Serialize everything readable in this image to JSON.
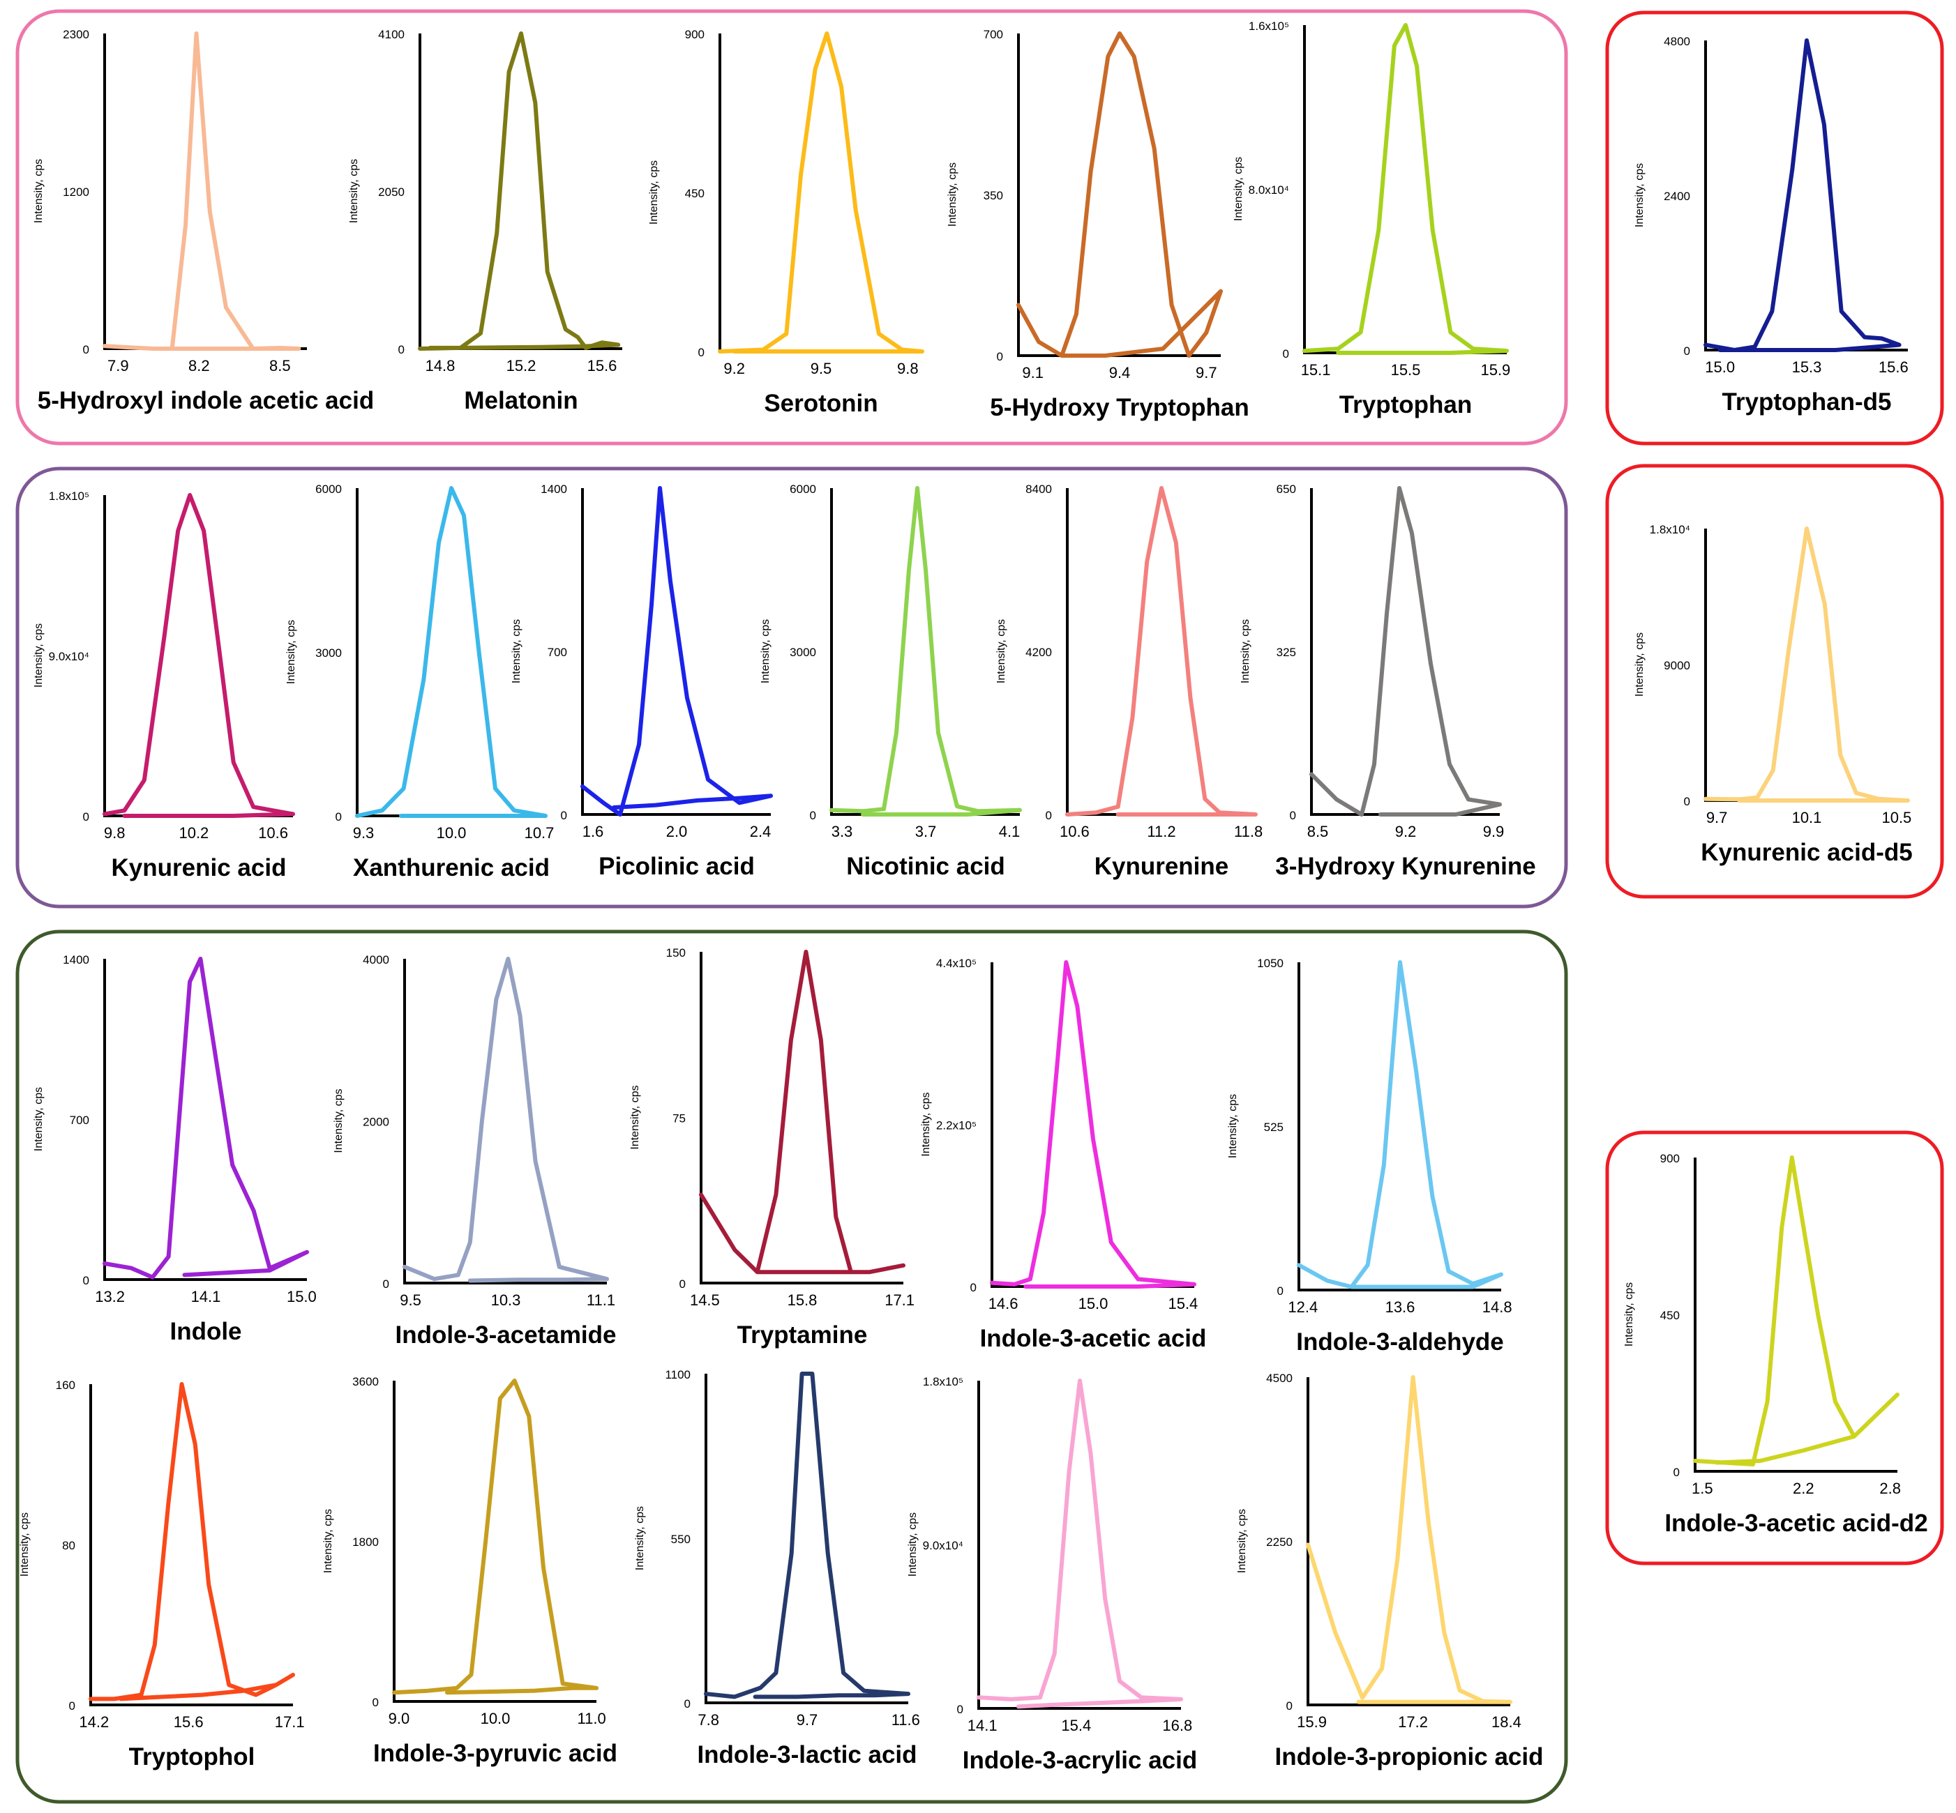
{
  "figure": {
    "y_axis_label": "Intensity, cps",
    "group_colors": {
      "serotonin": "#ee77aa",
      "kynurenine": "#7e5895",
      "indole": "#3f5a2b",
      "internal_standard": "#ee1c24"
    }
  },
  "chart_data": [
    {
      "type": "line",
      "group": "serotonin",
      "title": "5-Hydroxyl indole acetic acid",
      "color": "#f8b994",
      "xticks": [
        "7.9",
        "8.2",
        "8.5"
      ],
      "yticks": [
        "0",
        "1200",
        "2300"
      ],
      "xlim": [
        7.85,
        8.6
      ],
      "ylim": [
        0,
        2300
      ],
      "x": [
        7.85,
        7.93,
        8.03,
        8.1,
        8.15,
        8.19,
        8.24,
        8.3,
        8.4,
        8.5,
        8.57,
        8.5,
        8.35,
        8.2,
        8.1
      ],
      "y": [
        20,
        10,
        0,
        0,
        900,
        2300,
        1000,
        300,
        0,
        5,
        0,
        0,
        0,
        0,
        0
      ]
    },
    {
      "type": "line",
      "group": "serotonin",
      "title": "Melatonin",
      "color": "#7d7a14",
      "xticks": [
        "14.8",
        "15.2",
        "15.6"
      ],
      "yticks": [
        "0",
        "2050",
        "4100"
      ],
      "xlim": [
        14.7,
        15.7
      ],
      "ylim": [
        0,
        4100
      ],
      "x": [
        14.7,
        14.9,
        15.0,
        15.08,
        15.14,
        15.2,
        15.27,
        15.33,
        15.42,
        15.48,
        15.52,
        15.6,
        15.68,
        15.5,
        15.3,
        15.1,
        14.9,
        14.75
      ],
      "y": [
        0,
        10,
        200,
        1500,
        3600,
        4100,
        3200,
        1000,
        250,
        150,
        10,
        80,
        50,
        30,
        20,
        15,
        10,
        10
      ]
    },
    {
      "type": "line",
      "group": "serotonin",
      "title": "Serotonin",
      "color": "#fcbb18",
      "xticks": [
        "9.2",
        "9.5",
        "9.8"
      ],
      "yticks": [
        "0",
        "450",
        "900"
      ],
      "xlim": [
        9.15,
        9.85
      ],
      "ylim": [
        0,
        900
      ],
      "x": [
        9.15,
        9.3,
        9.38,
        9.43,
        9.48,
        9.52,
        9.57,
        9.62,
        9.7,
        9.78,
        9.85,
        9.6,
        9.4,
        9.2
      ],
      "y": [
        0,
        5,
        50,
        500,
        800,
        900,
        750,
        400,
        50,
        5,
        0,
        0,
        0,
        0
      ]
    },
    {
      "type": "line",
      "group": "serotonin",
      "title": "5-Hydroxy Tryptophan",
      "color": "#c96a27",
      "xticks": [
        "9.1",
        "9.4",
        "9.7"
      ],
      "yticks": [
        "0",
        "350",
        "700"
      ],
      "xlim": [
        9.05,
        9.75
      ],
      "ylim": [
        0,
        700
      ],
      "x": [
        9.05,
        9.12,
        9.2,
        9.25,
        9.3,
        9.36,
        9.4,
        9.45,
        9.52,
        9.58,
        9.64,
        9.7,
        9.75,
        9.55,
        9.35,
        9.2
      ],
      "y": [
        110,
        30,
        0,
        90,
        400,
        650,
        700,
        650,
        450,
        110,
        0,
        50,
        140,
        15,
        0,
        0
      ]
    },
    {
      "type": "line",
      "group": "serotonin",
      "title": "Tryptophan",
      "color": "#a6d21d",
      "xticks": [
        "15.1",
        "15.5",
        "15.9"
      ],
      "yticks": [
        "0",
        "8.0x10⁴",
        "1.6x10⁵"
      ],
      "xlim": [
        15.05,
        15.95
      ],
      "ylim": [
        0,
        160000
      ],
      "x": [
        15.05,
        15.2,
        15.3,
        15.38,
        15.45,
        15.5,
        15.55,
        15.62,
        15.7,
        15.8,
        15.95,
        15.7,
        15.4,
        15.2
      ],
      "y": [
        1000,
        2000,
        10000,
        60000,
        150000,
        160000,
        140000,
        60000,
        10000,
        2000,
        1000,
        0,
        0,
        0
      ]
    },
    {
      "type": "line",
      "group": "internal_standard",
      "title": "Tryptophan-d5",
      "color": "#141d91",
      "xticks": [
        "15.0",
        "15.3",
        "15.6"
      ],
      "yticks": [
        "0",
        "2400",
        "4800"
      ],
      "xlim": [
        14.95,
        15.65
      ],
      "ylim": [
        0,
        4800
      ],
      "x": [
        14.95,
        15.05,
        15.12,
        15.18,
        15.25,
        15.3,
        15.36,
        15.42,
        15.5,
        15.56,
        15.62,
        15.4,
        15.2,
        15.1,
        15.0
      ],
      "y": [
        80,
        0,
        50,
        600,
        2800,
        4800,
        3500,
        600,
        200,
        180,
        80,
        0,
        0,
        0,
        0
      ]
    },
    {
      "type": "line",
      "group": "kynurenine",
      "title": "Kynurenic acid",
      "color": "#c51c6c",
      "xticks": [
        "9.8",
        "10.2",
        "10.6"
      ],
      "yticks": [
        "0",
        "9.0x10⁴",
        "1.8x10⁵"
      ],
      "xlim": [
        9.75,
        10.7
      ],
      "ylim": [
        0,
        180000
      ],
      "x": [
        9.75,
        9.85,
        9.95,
        10.05,
        10.12,
        10.18,
        10.25,
        10.32,
        10.4,
        10.5,
        10.7,
        10.4,
        10.1,
        9.85
      ],
      "y": [
        1000,
        3000,
        20000,
        100000,
        160000,
        180000,
        160000,
        100000,
        30000,
        5000,
        1000,
        0,
        0,
        0
      ]
    },
    {
      "type": "line",
      "group": "kynurenine",
      "title": "Xanthurenic acid",
      "color": "#3bb8ea",
      "xticks": [
        "9.3",
        "10.0",
        "10.7"
      ],
      "yticks": [
        "0",
        "3000",
        "6000"
      ],
      "xlim": [
        9.25,
        10.75
      ],
      "ylim": [
        0,
        6000
      ],
      "x": [
        9.25,
        9.45,
        9.62,
        9.78,
        9.9,
        10.0,
        10.1,
        10.22,
        10.35,
        10.5,
        10.75,
        10.4,
        10.0,
        9.6
      ],
      "y": [
        0,
        100,
        500,
        2500,
        5000,
        6000,
        5500,
        3000,
        500,
        100,
        0,
        0,
        0,
        0
      ]
    },
    {
      "type": "line",
      "group": "kynurenine",
      "title": "Picolinic acid",
      "color": "#1b23e8",
      "xticks": [
        "1.6",
        "2.0",
        "2.4"
      ],
      "yticks": [
        "0",
        "700",
        "1400"
      ],
      "xlim": [
        1.55,
        2.45
      ],
      "ylim": [
        0,
        1400
      ],
      "x": [
        1.55,
        1.65,
        1.73,
        1.82,
        1.88,
        1.92,
        1.97,
        2.05,
        2.15,
        2.3,
        2.45,
        2.3,
        2.1,
        1.9,
        1.7
      ],
      "y": [
        120,
        50,
        0,
        300,
        900,
        1400,
        1000,
        500,
        150,
        50,
        80,
        70,
        60,
        40,
        30
      ]
    },
    {
      "type": "line",
      "group": "kynurenine",
      "title": "Nicotinic acid",
      "color": "#8ed34d",
      "xticks": [
        "3.3",
        "3.7",
        "4.1"
      ],
      "yticks": [
        "0",
        "3000",
        "6000"
      ],
      "xlim": [
        3.25,
        4.15
      ],
      "ylim": [
        0,
        6000
      ],
      "x": [
        3.25,
        3.4,
        3.5,
        3.56,
        3.62,
        3.66,
        3.7,
        3.76,
        3.85,
        3.95,
        4.15,
        3.9,
        3.6,
        3.4
      ],
      "y": [
        80,
        60,
        100,
        1500,
        4500,
        6000,
        4500,
        1500,
        150,
        60,
        80,
        0,
        0,
        0
      ]
    },
    {
      "type": "line",
      "group": "kynurenine",
      "title": "Kynurenine",
      "color": "#f3807e",
      "xticks": [
        "10.6",
        "11.2",
        "11.8"
      ],
      "yticks": [
        "0",
        "4200",
        "8400"
      ],
      "xlim": [
        10.55,
        11.85
      ],
      "ylim": [
        0,
        8400
      ],
      "x": [
        10.55,
        10.75,
        10.9,
        11.0,
        11.1,
        11.2,
        11.3,
        11.4,
        11.5,
        11.6,
        11.85,
        11.5,
        11.2,
        10.9
      ],
      "y": [
        0,
        50,
        200,
        2500,
        6500,
        8400,
        7000,
        3000,
        400,
        50,
        0,
        0,
        0,
        0
      ]
    },
    {
      "type": "line",
      "group": "kynurenine",
      "title": "3-Hydroxy Kynurenine",
      "color": "#7c7a79",
      "xticks": [
        "8.5",
        "9.2",
        "9.9"
      ],
      "yticks": [
        "0",
        "325",
        "650"
      ],
      "xlim": [
        8.45,
        9.95
      ],
      "ylim": [
        0,
        650
      ],
      "x": [
        8.45,
        8.65,
        8.85,
        8.95,
        9.05,
        9.15,
        9.25,
        9.4,
        9.55,
        9.7,
        9.95,
        9.6,
        9.3,
        9.0
      ],
      "y": [
        80,
        30,
        0,
        100,
        400,
        650,
        560,
        300,
        100,
        30,
        20,
        0,
        0,
        0
      ]
    },
    {
      "type": "line",
      "group": "internal_standard",
      "title": "Kynurenic acid-d5",
      "color": "#fcd27a",
      "xticks": [
        "9.7",
        "10.1",
        "10.5"
      ],
      "yticks": [
        "0",
        "9000",
        "1.8x10⁴"
      ],
      "xlim": [
        9.65,
        10.55
      ],
      "ylim": [
        0,
        18000
      ],
      "x": [
        9.65,
        9.8,
        9.88,
        9.95,
        10.02,
        10.1,
        10.18,
        10.25,
        10.32,
        10.42,
        10.55,
        10.3,
        10.0,
        9.8
      ],
      "y": [
        100,
        80,
        200,
        2000,
        10000,
        18000,
        13000,
        3000,
        500,
        100,
        0,
        0,
        0,
        0
      ]
    },
    {
      "type": "line",
      "group": "indole",
      "title": "Indole",
      "color": "#9c22d3",
      "xticks": [
        "13.2",
        "14.1",
        "15.0"
      ],
      "yticks": [
        "0",
        "700",
        "1400"
      ],
      "xlim": [
        13.15,
        15.05
      ],
      "ylim": [
        0,
        1400
      ],
      "x": [
        13.15,
        13.4,
        13.6,
        13.75,
        13.85,
        13.95,
        14.05,
        14.15,
        14.35,
        14.55,
        14.7,
        15.05,
        14.7,
        14.3,
        13.9
      ],
      "y": [
        70,
        50,
        10,
        100,
        700,
        1300,
        1400,
        1100,
        500,
        300,
        50,
        120,
        40,
        30,
        20
      ]
    },
    {
      "type": "line",
      "group": "indole",
      "title": "Indole-3-acetamide",
      "color": "#95a1c2",
      "xticks": [
        "9.5",
        "10.3",
        "11.1"
      ],
      "yticks": [
        "0",
        "2000",
        "4000"
      ],
      "xlim": [
        9.45,
        11.15
      ],
      "ylim": [
        0,
        4000
      ],
      "x": [
        9.45,
        9.7,
        9.9,
        10.0,
        10.1,
        10.22,
        10.32,
        10.42,
        10.55,
        10.75,
        11.15,
        10.8,
        10.4,
        10.0
      ],
      "y": [
        200,
        50,
        100,
        500,
        2000,
        3500,
        4000,
        3300,
        1500,
        200,
        50,
        40,
        40,
        30
      ]
    },
    {
      "type": "line",
      "group": "indole",
      "title": "Tryptamine",
      "color": "#a51c3a",
      "xticks": [
        "14.5",
        "15.8",
        "17.1"
      ],
      "yticks": [
        "0",
        "75",
        "150"
      ],
      "xlim": [
        14.45,
        17.15
      ],
      "ylim": [
        0,
        150
      ],
      "x": [
        14.45,
        14.9,
        15.2,
        15.45,
        15.65,
        15.85,
        16.05,
        16.25,
        16.45,
        16.7,
        17.15,
        16.7,
        16.2,
        15.7,
        15.2
      ],
      "y": [
        40,
        15,
        5,
        40,
        110,
        150,
        110,
        30,
        5,
        5,
        8,
        5,
        5,
        5,
        5
      ]
    },
    {
      "type": "line",
      "group": "indole",
      "title": "Indole-3-acetic acid",
      "color": "#ee2ddf",
      "xticks": [
        "14.6",
        "15.0",
        "15.4"
      ],
      "yticks": [
        "0",
        "2.2x10⁵",
        "4.4x10⁵"
      ],
      "xlim": [
        14.55,
        15.45
      ],
      "ylim": [
        0,
        440000
      ],
      "x": [
        14.55,
        14.65,
        14.72,
        14.78,
        14.84,
        14.88,
        14.93,
        15.0,
        15.08,
        15.2,
        15.45,
        15.2,
        14.95,
        14.7
      ],
      "y": [
        5000,
        3000,
        10000,
        100000,
        300000,
        440000,
        380000,
        200000,
        60000,
        10000,
        3000,
        0,
        0,
        0
      ]
    },
    {
      "type": "line",
      "group": "indole",
      "title": "Indole-3-aldehyde",
      "color": "#6ac7f1",
      "xticks": [
        "12.4",
        "13.6",
        "14.8"
      ],
      "yticks": [
        "0",
        "525",
        "1050"
      ],
      "xlim": [
        12.35,
        14.85
      ],
      "ylim": [
        0,
        1050
      ],
      "x": [
        12.35,
        12.7,
        13.0,
        13.2,
        13.4,
        13.6,
        13.8,
        14.0,
        14.2,
        14.5,
        14.85,
        14.5,
        14.0,
        13.5,
        13.0
      ],
      "y": [
        80,
        30,
        10,
        80,
        400,
        1050,
        700,
        300,
        60,
        20,
        50,
        10,
        10,
        10,
        10
      ]
    },
    {
      "type": "line",
      "group": "indole",
      "title": "Tryptophol",
      "color": "#f9491a",
      "xticks": [
        "14.2",
        "15.6",
        "17.1"
      ],
      "yticks": [
        "0",
        "80",
        "160"
      ],
      "xlim": [
        14.15,
        17.15
      ],
      "ylim": [
        0,
        160
      ],
      "x": [
        14.15,
        14.5,
        14.9,
        15.1,
        15.3,
        15.5,
        15.7,
        15.9,
        16.2,
        16.6,
        16.9,
        17.15,
        16.9,
        16.4,
        15.8,
        15.2,
        14.6
      ],
      "y": [
        3,
        3,
        5,
        30,
        100,
        160,
        130,
        60,
        10,
        5,
        10,
        15,
        10,
        7,
        5,
        4,
        3
      ]
    },
    {
      "type": "line",
      "group": "indole",
      "title": "Indole-3-pyruvic acid",
      "color": "#c69e1f",
      "xticks": [
        "9.0",
        "10.0",
        "11.0"
      ],
      "yticks": [
        "0",
        "1800",
        "3600"
      ],
      "xlim": [
        8.95,
        11.05
      ],
      "ylim": [
        0,
        3600
      ],
      "x": [
        8.95,
        9.3,
        9.6,
        9.75,
        9.9,
        10.05,
        10.2,
        10.35,
        10.5,
        10.7,
        11.05,
        10.8,
        10.4,
        10.0,
        9.5
      ],
      "y": [
        100,
        120,
        150,
        300,
        1800,
        3400,
        3600,
        3200,
        1500,
        200,
        150,
        150,
        120,
        110,
        100
      ]
    },
    {
      "type": "line",
      "group": "indole",
      "title": "Indole-3-lactic acid",
      "color": "#253a6b",
      "xticks": [
        "7.8",
        "9.7",
        "11.6"
      ],
      "yticks": [
        "0",
        "550",
        "1100"
      ],
      "xlim": [
        7.75,
        11.65
      ],
      "ylim": [
        0,
        1100
      ],
      "x": [
        7.75,
        8.3,
        8.8,
        9.1,
        9.4,
        9.6,
        9.8,
        10.1,
        10.4,
        10.8,
        11.65,
        11.0,
        10.3,
        9.5,
        8.7
      ],
      "y": [
        30,
        20,
        50,
        100,
        500,
        1100,
        1100,
        500,
        100,
        40,
        30,
        25,
        25,
        20,
        20
      ]
    },
    {
      "type": "line",
      "group": "indole",
      "title": "Indole-3-acrylic acid",
      "color": "#f9a5d3",
      "xticks": [
        "14.1",
        "15.4",
        "16.8"
      ],
      "yticks": [
        "0",
        "9.0x10⁴",
        "1.8x10⁵"
      ],
      "xlim": [
        14.05,
        16.85
      ],
      "ylim": [
        0,
        180000
      ],
      "x": [
        14.05,
        14.5,
        14.9,
        15.1,
        15.3,
        15.45,
        15.6,
        15.8,
        16.0,
        16.3,
        16.85,
        16.3,
        15.7,
        15.1,
        14.6
      ],
      "y": [
        6000,
        5000,
        6000,
        30000,
        130000,
        180000,
        140000,
        60000,
        15000,
        6000,
        5000,
        4000,
        3000,
        2000,
        1000
      ]
    },
    {
      "type": "line",
      "group": "indole",
      "title": "Indole-3-propionic acid",
      "color": "#fdd66f",
      "xticks": [
        "15.9",
        "17.2",
        "18.4"
      ],
      "yticks": [
        "0",
        "2250",
        "4500"
      ],
      "xlim": [
        15.85,
        18.45
      ],
      "ylim": [
        0,
        4500
      ],
      "x": [
        15.85,
        16.2,
        16.55,
        16.8,
        17.0,
        17.2,
        17.4,
        17.6,
        17.8,
        18.1,
        18.45,
        18.0,
        17.5,
        17.0,
        16.5
      ],
      "y": [
        2200,
        1000,
        100,
        500,
        2000,
        4500,
        2500,
        1000,
        200,
        50,
        40,
        40,
        40,
        40,
        40
      ]
    },
    {
      "type": "line",
      "group": "internal_standard",
      "title": "Indole-3-acetic acid-d2",
      "color": "#cdd41e",
      "xticks": [
        "1.5",
        "2.2",
        "2.8"
      ],
      "yticks": [
        "0",
        "450",
        "900"
      ],
      "xlim": [
        1.45,
        2.85
      ],
      "ylim": [
        0,
        900
      ],
      "x": [
        1.45,
        1.65,
        1.85,
        1.95,
        2.05,
        2.12,
        2.2,
        2.3,
        2.42,
        2.55,
        2.85,
        2.55,
        2.2,
        1.9,
        1.6
      ],
      "y": [
        30,
        25,
        20,
        200,
        700,
        900,
        700,
        450,
        200,
        100,
        220,
        100,
        60,
        30,
        25
      ]
    }
  ]
}
